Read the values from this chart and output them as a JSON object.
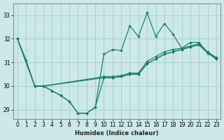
{
  "xlabel": "Humidex (Indice chaleur)",
  "bg_color": "#cce8e8",
  "grid_color": "#aad0d0",
  "line_color": "#1a7a6e",
  "xlim": [
    -0.5,
    23.5
  ],
  "ylim": [
    28.6,
    33.5
  ],
  "yticks": [
    29,
    30,
    31,
    32,
    33
  ],
  "xticks": [
    0,
    1,
    2,
    3,
    4,
    5,
    6,
    7,
    8,
    9,
    10,
    11,
    12,
    13,
    14,
    15,
    16,
    17,
    18,
    19,
    20,
    21,
    22,
    23
  ],
  "lines": [
    {
      "x": [
        0,
        1,
        2,
        3,
        4,
        5,
        6,
        7,
        8,
        9,
        10,
        11,
        12,
        13,
        14,
        15,
        16,
        17,
        18,
        19,
        20,
        21,
        22,
        23
      ],
      "y": [
        32.0,
        31.1,
        30.0,
        30.0,
        29.8,
        29.6,
        29.35,
        28.85,
        28.85,
        29.1,
        31.35,
        31.55,
        31.5,
        32.55,
        32.1,
        33.1,
        32.1,
        32.65,
        32.2,
        31.6,
        31.85,
        31.85,
        31.4,
        31.2
      ]
    },
    {
      "x": [
        0,
        2,
        3,
        10,
        11,
        12,
        13,
        14,
        15,
        16,
        17,
        18,
        19,
        20,
        21,
        22,
        23
      ],
      "y": [
        32.0,
        30.0,
        30.0,
        30.4,
        30.4,
        30.45,
        30.55,
        30.55,
        31.05,
        31.25,
        31.45,
        31.55,
        31.6,
        31.7,
        31.8,
        31.45,
        31.2
      ]
    },
    {
      "x": [
        0,
        2,
        3,
        10,
        11,
        12,
        13,
        14,
        15,
        16,
        17,
        18,
        19,
        20,
        21,
        22,
        23
      ],
      "y": [
        32.0,
        30.0,
        30.0,
        30.35,
        30.35,
        30.4,
        30.5,
        30.5,
        30.95,
        31.15,
        31.35,
        31.45,
        31.55,
        31.65,
        31.75,
        31.4,
        31.15
      ]
    },
    {
      "x": [
        2,
        3,
        4,
        5,
        6,
        7,
        8,
        9,
        10,
        11,
        12,
        13,
        14,
        15,
        16,
        17,
        18,
        19,
        20,
        21,
        22,
        23
      ],
      "y": [
        30.0,
        30.0,
        29.8,
        29.6,
        29.35,
        28.85,
        28.85,
        29.1,
        30.35,
        30.35,
        30.4,
        30.5,
        30.5,
        30.95,
        31.15,
        31.35,
        31.45,
        31.55,
        31.65,
        31.75,
        31.4,
        31.15
      ]
    }
  ]
}
